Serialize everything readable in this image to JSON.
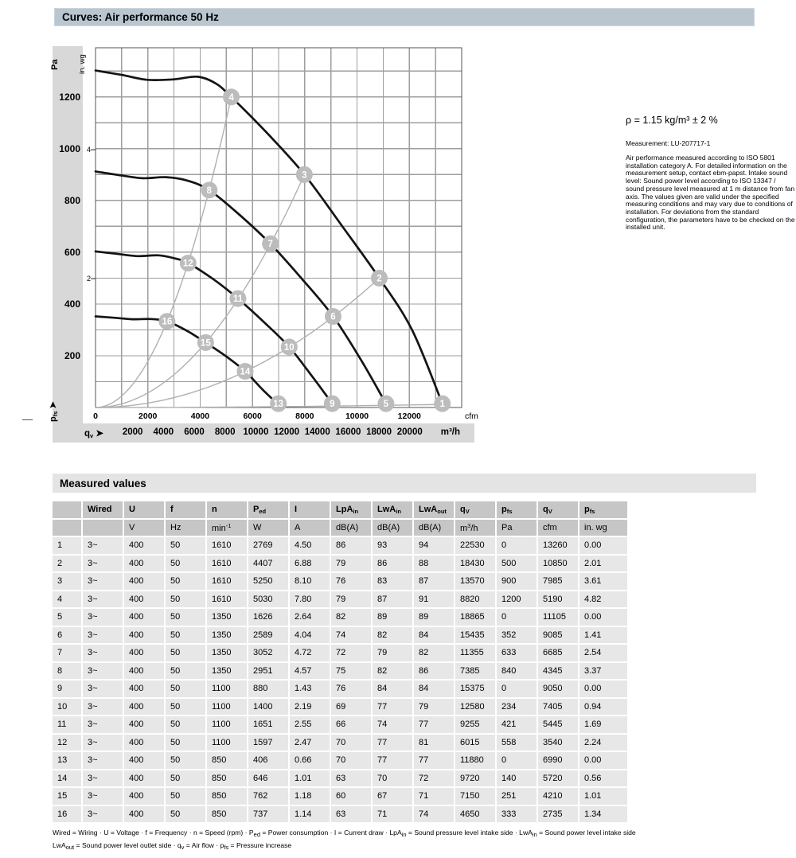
{
  "page": {
    "curves_title": "Curves: Air performance 50 Hz",
    "measured_title": "Measured values",
    "side_note": {
      "density": "ρ = 1.15 kg/m³ ± 2 %",
      "measurement": "Measurement: LU-207717-1",
      "body": "Air performance measured according to ISO 5801 installation category A. For detailed information on the measurement setup, contact ebm-papst. Intake sound level: Sound power level according to ISO 13347 / sound pressure level measured at 1 m distance from fan axis. The values given are valid under the specified measuring conditions and may vary due to conditions of installation. For deviations from the standard configuration, the parameters have to be checked on the installed unit.",
      "footnote_line1": "Wired = Wiring · U = Voltage · f = Frequency · n = Speed (rpm) · P_{ed} = Power consumption · I = Current draw · LpA_{in} = Sound pressure level intake side · LwA_{in} = Sound power level intake side",
      "footnote_line2": "LwA_{out} = Sound power level outlet side · q_{v} = Air flow · p_{fs} = Pressure increase"
    }
  },
  "colors": {
    "header_bar": "#b9c6d0",
    "strip": "#d8d8d8",
    "table_header": "#c6c6c6",
    "table_row": "#e7e7e7",
    "section_bar": "#e4e4e4",
    "grid": "#9e9e9e",
    "border": "#555555",
    "fan_curve": "#141414",
    "system_curve": "#b0b0b0",
    "marker": "#bcbcbc",
    "marker_text": "#ffffff"
  },
  "chart_data": {
    "type": "line",
    "title": "Air performance 50 Hz",
    "x_axis": {
      "unit_primary": "cfm",
      "unit_secondary": "m³/h",
      "name": "q_{v} ➤",
      "cfm_ticks": [
        0,
        2000,
        4000,
        6000,
        8000,
        10000,
        12000
      ],
      "m3h_ticks": [
        2000,
        4000,
        6000,
        8000,
        10000,
        12000,
        14000,
        16000,
        18000,
        20000
      ],
      "xmax_cfm": 14000,
      "grid_step_cfm": 1000,
      "cfm_per_m3h": 0.58858
    },
    "y_axis": {
      "unit_primary": "Pa",
      "unit_secondary": "in. wg",
      "name": "p_{fs} ➤",
      "pa_ticks": [
        200,
        400,
        600,
        800,
        1000,
        1200
      ],
      "inwg_ticks": [
        {
          "label": "4",
          "pa": 996
        },
        {
          "label": "2",
          "pa": 498
        }
      ],
      "ymax_pa": 1390,
      "grid_step_pa": 100
    },
    "fan_curves": [
      {
        "name": "curve-1610-rpm",
        "points": [
          [
            0,
            1302
          ],
          [
            1000,
            1285
          ],
          [
            2000,
            1266
          ],
          [
            3000,
            1268
          ],
          [
            3900,
            1278
          ],
          [
            4600,
            1252
          ],
          [
            5190,
            1200
          ],
          [
            6600,
            1056
          ],
          [
            7985,
            900
          ],
          [
            9450,
            698
          ],
          [
            10850,
            500
          ],
          [
            12100,
            300
          ],
          [
            13260,
            15
          ]
        ]
      },
      {
        "name": "curve-1350-rpm",
        "points": [
          [
            0,
            912
          ],
          [
            900,
            898
          ],
          [
            1800,
            886
          ],
          [
            2700,
            890
          ],
          [
            3500,
            877
          ],
          [
            4345,
            840
          ],
          [
            5500,
            745
          ],
          [
            6685,
            633
          ],
          [
            7900,
            496
          ],
          [
            9085,
            352
          ],
          [
            10150,
            184
          ],
          [
            11105,
            15
          ]
        ]
      },
      {
        "name": "curve-1100-rpm",
        "points": [
          [
            0,
            603
          ],
          [
            800,
            594
          ],
          [
            1600,
            585
          ],
          [
            2400,
            588
          ],
          [
            3000,
            577
          ],
          [
            3540,
            558
          ],
          [
            4500,
            496
          ],
          [
            5445,
            421
          ],
          [
            6450,
            329
          ],
          [
            7405,
            234
          ],
          [
            8300,
            118
          ],
          [
            9050,
            15
          ]
        ]
      },
      {
        "name": "curve-850-rpm",
        "points": [
          [
            0,
            352
          ],
          [
            700,
            347
          ],
          [
            1400,
            341
          ],
          [
            2100,
            342
          ],
          [
            2735,
            333
          ],
          [
            3500,
            296
          ],
          [
            4210,
            251
          ],
          [
            5000,
            197
          ],
          [
            5720,
            140
          ],
          [
            6400,
            68
          ],
          [
            6990,
            12
          ]
        ]
      }
    ],
    "system_curves": [
      {
        "name": "system-line-4-8-12-16",
        "k": 4.452e-05,
        "qmax": 5190
      },
      {
        "name": "system-line-3-7-11-15",
        "k": 1.4115e-05,
        "qmax": 7985
      },
      {
        "name": "system-line-2-6-10-14",
        "k": 4.2484e-06,
        "qmax": 10850
      },
      {
        "name": "system-line-1-5-9-13",
        "k": 6.8e-08,
        "qmax": 13260
      }
    ],
    "markers": [
      {
        "n": "1",
        "cfm": 13260,
        "pa": 0
      },
      {
        "n": "2",
        "cfm": 10850,
        "pa": 500
      },
      {
        "n": "3",
        "cfm": 7985,
        "pa": 900
      },
      {
        "n": "4",
        "cfm": 5190,
        "pa": 1200
      },
      {
        "n": "5",
        "cfm": 11105,
        "pa": 0
      },
      {
        "n": "6",
        "cfm": 9085,
        "pa": 352
      },
      {
        "n": "7",
        "cfm": 6685,
        "pa": 633
      },
      {
        "n": "8",
        "cfm": 4345,
        "pa": 840
      },
      {
        "n": "9",
        "cfm": 9050,
        "pa": 0
      },
      {
        "n": "10",
        "cfm": 7405,
        "pa": 234
      },
      {
        "n": "11",
        "cfm": 5445,
        "pa": 421
      },
      {
        "n": "12",
        "cfm": 3540,
        "pa": 558
      },
      {
        "n": "13",
        "cfm": 6990,
        "pa": 0
      },
      {
        "n": "14",
        "cfm": 5720,
        "pa": 140
      },
      {
        "n": "15",
        "cfm": 4210,
        "pa": 251
      },
      {
        "n": "16",
        "cfm": 2735,
        "pa": 333
      }
    ]
  },
  "table": {
    "headers": [
      "",
      "Wired",
      "U",
      "f",
      "n",
      "P_{ed}",
      "I",
      "LpA_{in}",
      "LwA_{in}",
      "LwA_{out}",
      "q_{V}",
      "p_{fs}",
      "q_{V}",
      "p_{fs}"
    ],
    "units": [
      "",
      "",
      "V",
      "Hz",
      "min^{-1}",
      "W",
      "A",
      "dB(A)",
      "dB(A)",
      "dB(A)",
      "m^{3}/h",
      "Pa",
      "cfm",
      "in. wg"
    ],
    "rows": [
      [
        "1",
        "3~",
        "400",
        "50",
        "1610",
        "2769",
        "4.50",
        "86",
        "93",
        "94",
        "22530",
        "0",
        "13260",
        "0.00"
      ],
      [
        "2",
        "3~",
        "400",
        "50",
        "1610",
        "4407",
        "6.88",
        "79",
        "86",
        "88",
        "18430",
        "500",
        "10850",
        "2.01"
      ],
      [
        "3",
        "3~",
        "400",
        "50",
        "1610",
        "5250",
        "8.10",
        "76",
        "83",
        "87",
        "13570",
        "900",
        "7985",
        "3.61"
      ],
      [
        "4",
        "3~",
        "400",
        "50",
        "1610",
        "5030",
        "7.80",
        "79",
        "87",
        "91",
        "8820",
        "1200",
        "5190",
        "4.82"
      ],
      [
        "5",
        "3~",
        "400",
        "50",
        "1350",
        "1626",
        "2.64",
        "82",
        "89",
        "89",
        "18865",
        "0",
        "11105",
        "0.00"
      ],
      [
        "6",
        "3~",
        "400",
        "50",
        "1350",
        "2589",
        "4.04",
        "74",
        "82",
        "84",
        "15435",
        "352",
        "9085",
        "1.41"
      ],
      [
        "7",
        "3~",
        "400",
        "50",
        "1350",
        "3052",
        "4.72",
        "72",
        "79",
        "82",
        "11355",
        "633",
        "6685",
        "2.54"
      ],
      [
        "8",
        "3~",
        "400",
        "50",
        "1350",
        "2951",
        "4.57",
        "75",
        "82",
        "86",
        "7385",
        "840",
        "4345",
        "3.37"
      ],
      [
        "9",
        "3~",
        "400",
        "50",
        "1100",
        "880",
        "1.43",
        "76",
        "84",
        "84",
        "15375",
        "0",
        "9050",
        "0.00"
      ],
      [
        "10",
        "3~",
        "400",
        "50",
        "1100",
        "1400",
        "2.19",
        "69",
        "77",
        "79",
        "12580",
        "234",
        "7405",
        "0.94"
      ],
      [
        "11",
        "3~",
        "400",
        "50",
        "1100",
        "1651",
        "2.55",
        "66",
        "74",
        "77",
        "9255",
        "421",
        "5445",
        "1.69"
      ],
      [
        "12",
        "3~",
        "400",
        "50",
        "1100",
        "1597",
        "2.47",
        "70",
        "77",
        "81",
        "6015",
        "558",
        "3540",
        "2.24"
      ],
      [
        "13",
        "3~",
        "400",
        "50",
        "850",
        "406",
        "0.66",
        "70",
        "77",
        "77",
        "11880",
        "0",
        "6990",
        "0.00"
      ],
      [
        "14",
        "3~",
        "400",
        "50",
        "850",
        "646",
        "1.01",
        "63",
        "70",
        "72",
        "9720",
        "140",
        "5720",
        "0.56"
      ],
      [
        "15",
        "3~",
        "400",
        "50",
        "850",
        "762",
        "1.18",
        "60",
        "67",
        "71",
        "7150",
        "251",
        "4210",
        "1.01"
      ],
      [
        "16",
        "3~",
        "400",
        "50",
        "850",
        "737",
        "1.14",
        "63",
        "71",
        "74",
        "4650",
        "333",
        "2735",
        "1.34"
      ]
    ]
  }
}
